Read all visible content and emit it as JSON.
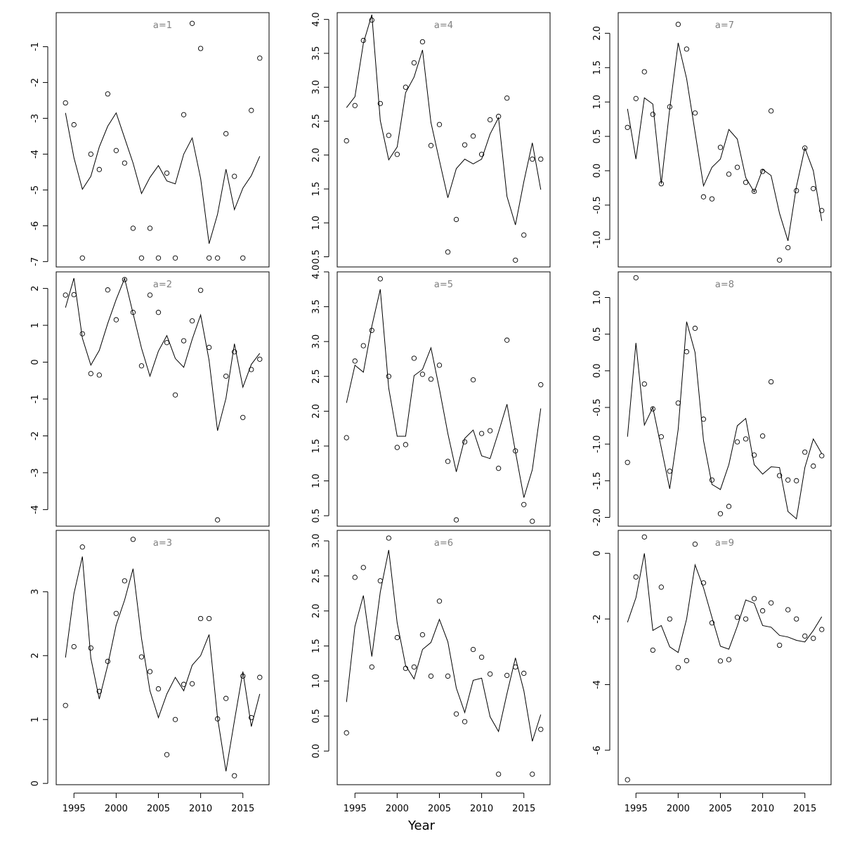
{
  "xlabel": "Year",
  "x_ticks": [
    1995,
    2000,
    2005,
    2010,
    2015
  ],
  "chart_data": [
    {
      "type": "scatter+line",
      "label": "a=1",
      "x": [
        1994,
        1995,
        1996,
        1997,
        1998,
        1999,
        2000,
        2001,
        2002,
        2003,
        2004,
        2005,
        2006,
        2007,
        2008,
        2009,
        2010,
        2011,
        2012,
        2013,
        2014,
        2015,
        2016,
        2017
      ],
      "points": [
        -2.57,
        -3.18,
        -6.9,
        -4.0,
        -4.43,
        -2.32,
        -3.9,
        -4.25,
        -6.07,
        -6.9,
        -6.07,
        -6.9,
        -4.53,
        -6.9,
        -2.9,
        -0.35,
        -1.05,
        -6.9,
        -6.9,
        -3.43,
        -4.62,
        -6.9,
        -2.78,
        -1.32
      ],
      "line": [
        -2.85,
        -4.1,
        -4.98,
        -4.62,
        -3.8,
        -3.22,
        -2.85,
        -3.55,
        -4.25,
        -5.1,
        -4.65,
        -4.32,
        -4.75,
        -4.83,
        -4.0,
        -3.55,
        -4.68,
        -6.5,
        -5.68,
        -4.42,
        -5.55,
        -4.95,
        -4.6,
        -4.06
      ],
      "ylim": [
        -7.15,
        -0.05
      ],
      "yticks": [
        -7,
        -6,
        -5,
        -4,
        -3,
        -2,
        -1
      ]
    },
    {
      "type": "scatter+line",
      "label": "a=2",
      "x": [
        1994,
        1995,
        1996,
        1997,
        1998,
        1999,
        2000,
        2001,
        2002,
        2003,
        2004,
        2005,
        2006,
        2007,
        2008,
        2009,
        2010,
        2011,
        2012,
        2013,
        2014,
        2015,
        2016,
        2017
      ],
      "points": [
        1.82,
        1.83,
        0.77,
        -0.31,
        -0.35,
        1.96,
        1.15,
        2.24,
        1.35,
        -0.1,
        1.82,
        1.35,
        0.53,
        -0.89,
        0.58,
        1.12,
        1.95,
        0.4,
        -4.28,
        -0.38,
        0.28,
        -1.5,
        -0.2,
        0.08
      ],
      "line": [
        1.48,
        2.28,
        0.65,
        -0.08,
        0.32,
        1.05,
        1.7,
        2.27,
        1.32,
        0.38,
        -0.38,
        0.3,
        0.72,
        0.1,
        -0.14,
        0.62,
        1.28,
        0.05,
        -1.86,
        -0.98,
        0.5,
        -0.68,
        -0.06,
        0.24
      ],
      "ylim": [
        -4.45,
        2.45
      ],
      "yticks": [
        -4,
        -3,
        -2,
        -1,
        0,
        1,
        2
      ]
    },
    {
      "type": "scatter+line",
      "label": "a=3",
      "x": [
        1994,
        1995,
        1996,
        1997,
        1998,
        1999,
        2000,
        2001,
        2002,
        2003,
        2004,
        2005,
        2006,
        2007,
        2008,
        2009,
        2010,
        2011,
        2012,
        2013,
        2014,
        2015,
        2016,
        2017
      ],
      "points": [
        1.22,
        2.14,
        3.7,
        2.12,
        1.44,
        1.91,
        2.66,
        3.17,
        3.82,
        1.98,
        1.75,
        1.48,
        0.45,
        1.0,
        1.55,
        1.56,
        2.58,
        2.58,
        1.01,
        1.33,
        0.12,
        1.68,
        1.03,
        1.66
      ],
      "line": [
        1.97,
        2.97,
        3.55,
        1.96,
        1.32,
        1.85,
        2.48,
        2.87,
        3.36,
        2.27,
        1.45,
        1.03,
        1.4,
        1.66,
        1.45,
        1.85,
        2.0,
        2.33,
        1.03,
        0.19,
        0.98,
        1.75,
        0.89,
        1.4
      ],
      "ylim": [
        -0.02,
        3.96
      ],
      "yticks": [
        0,
        1,
        2,
        3
      ]
    },
    {
      "type": "scatter+line",
      "label": "a=4",
      "x": [
        1994,
        1995,
        1996,
        1997,
        1998,
        1999,
        2000,
        2001,
        2002,
        2003,
        2004,
        2005,
        2006,
        2007,
        2008,
        2009,
        2010,
        2011,
        2012,
        2013,
        2014,
        2015,
        2016,
        2017
      ],
      "points": [
        2.21,
        2.73,
        3.69,
        3.99,
        2.76,
        2.29,
        2.01,
        3.0,
        3.36,
        3.67,
        2.14,
        2.45,
        0.57,
        1.05,
        2.15,
        2.28,
        2.01,
        2.52,
        2.57,
        2.84,
        0.45,
        0.82,
        1.94,
        1.94
      ],
      "line": [
        2.7,
        2.86,
        3.65,
        4.07,
        2.51,
        1.93,
        2.12,
        2.92,
        3.15,
        3.55,
        2.48,
        1.92,
        1.37,
        1.8,
        1.94,
        1.87,
        1.94,
        2.31,
        2.55,
        1.39,
        0.97,
        1.61,
        2.18,
        1.49
      ],
      "ylim": [
        0.35,
        4.1
      ],
      "yticks": [
        0.5,
        1.0,
        1.5,
        2.0,
        2.5,
        3.0,
        3.5,
        4.0
      ]
    },
    {
      "type": "scatter+line",
      "label": "a=5",
      "x": [
        1994,
        1995,
        1996,
        1997,
        1998,
        1999,
        2000,
        2001,
        2002,
        2003,
        2004,
        2005,
        2006,
        2007,
        2008,
        2009,
        2010,
        2011,
        2012,
        2013,
        2014,
        2015,
        2016,
        2017
      ],
      "points": [
        1.62,
        2.72,
        2.94,
        3.16,
        3.9,
        2.5,
        1.48,
        1.52,
        2.76,
        2.53,
        2.46,
        2.66,
        1.28,
        0.44,
        1.56,
        2.45,
        1.68,
        1.72,
        1.18,
        3.02,
        1.43,
        0.66,
        0.42,
        2.38
      ],
      "line": [
        2.12,
        2.66,
        2.56,
        3.22,
        3.75,
        2.33,
        1.64,
        1.64,
        2.51,
        2.6,
        2.91,
        2.32,
        1.68,
        1.13,
        1.61,
        1.73,
        1.36,
        1.32,
        1.7,
        2.1,
        1.42,
        0.76,
        1.16,
        2.04
      ],
      "ylim": [
        0.35,
        4.0
      ],
      "yticks": [
        0.5,
        1.0,
        1.5,
        2.0,
        2.5,
        3.0,
        3.5,
        4.0
      ]
    },
    {
      "type": "scatter+line",
      "label": "a=6",
      "x": [
        1994,
        1995,
        1996,
        1997,
        1998,
        1999,
        2000,
        2001,
        2002,
        2003,
        2004,
        2005,
        2006,
        2007,
        2008,
        2009,
        2010,
        2011,
        2012,
        2013,
        2014,
        2015,
        2016,
        2017
      ],
      "points": [
        0.26,
        2.48,
        2.62,
        1.2,
        2.43,
        3.04,
        1.62,
        1.18,
        1.2,
        1.66,
        1.07,
        2.14,
        1.07,
        0.53,
        0.42,
        1.45,
        1.34,
        1.1,
        -0.33,
        1.08,
        1.2,
        1.11,
        -0.33,
        0.31
      ],
      "line": [
        0.7,
        1.78,
        2.22,
        1.35,
        2.27,
        2.87,
        1.83,
        1.22,
        1.03,
        1.45,
        1.55,
        1.88,
        1.56,
        0.9,
        0.55,
        1.01,
        1.04,
        0.49,
        0.28,
        0.82,
        1.33,
        0.86,
        0.14,
        0.52
      ],
      "ylim": [
        -0.48,
        3.15
      ],
      "yticks": [
        0.0,
        0.5,
        1.0,
        1.5,
        2.0,
        2.5,
        3.0
      ]
    },
    {
      "type": "scatter+line",
      "label": "a=7",
      "x": [
        1994,
        1995,
        1996,
        1997,
        1998,
        1999,
        2000,
        2001,
        2002,
        2003,
        2004,
        2005,
        2006,
        2007,
        2008,
        2009,
        2010,
        2011,
        2012,
        2013,
        2014,
        2015,
        2016,
        2017
      ],
      "points": [
        0.63,
        1.05,
        1.44,
        0.82,
        -0.19,
        0.93,
        2.13,
        1.77,
        0.84,
        -0.38,
        -0.41,
        0.34,
        -0.05,
        0.05,
        -0.17,
        -0.3,
        -0.01,
        0.87,
        -1.3,
        -1.12,
        -0.29,
        0.33,
        -0.26,
        -0.58
      ],
      "line": [
        0.9,
        0.17,
        1.06,
        0.97,
        -0.19,
        0.9,
        1.86,
        1.34,
        0.56,
        -0.22,
        0.05,
        0.17,
        0.6,
        0.46,
        -0.1,
        -0.31,
        0.02,
        -0.07,
        -0.62,
        -1.02,
        -0.23,
        0.33,
        0.0,
        -0.73
      ],
      "ylim": [
        -1.4,
        2.3
      ],
      "yticks": [
        -1.0,
        -0.5,
        0.0,
        0.5,
        1.0,
        1.5,
        2.0
      ]
    },
    {
      "type": "scatter+line",
      "label": "a=8",
      "x": [
        1994,
        1995,
        1996,
        1997,
        1998,
        1999,
        2000,
        2001,
        2002,
        2003,
        2004,
        2005,
        2006,
        2007,
        2008,
        2009,
        2010,
        2011,
        2012,
        2013,
        2014,
        2015,
        2016,
        2017
      ],
      "points": [
        -1.25,
        1.27,
        -0.18,
        -0.52,
        -0.9,
        -1.37,
        -0.44,
        0.26,
        0.58,
        -0.66,
        -1.49,
        -1.95,
        -1.85,
        -0.97,
        -0.93,
        -1.15,
        -0.89,
        -0.15,
        -1.43,
        -1.49,
        -1.5,
        -1.11,
        -1.3,
        -1.16
      ],
      "line": [
        -0.9,
        0.38,
        -0.74,
        -0.5,
        -1.05,
        -1.61,
        -0.8,
        0.67,
        0.25,
        -0.95,
        -1.55,
        -1.62,
        -1.28,
        -0.75,
        -0.65,
        -1.28,
        -1.41,
        -1.31,
        -1.32,
        -1.92,
        -2.02,
        -1.32,
        -0.93,
        -1.13
      ],
      "ylim": [
        -2.12,
        1.35
      ],
      "yticks": [
        -2.0,
        -1.5,
        -1.0,
        -0.5,
        0.0,
        0.5,
        1.0
      ]
    },
    {
      "type": "scatter+line",
      "label": "a=9",
      "x": [
        1994,
        1995,
        1996,
        1997,
        1998,
        1999,
        2000,
        2001,
        2002,
        2003,
        2004,
        2005,
        2006,
        2007,
        2008,
        2009,
        2010,
        2011,
        2012,
        2013,
        2014,
        2015,
        2016,
        2017
      ],
      "points": [
        -6.9,
        -0.72,
        0.5,
        -2.95,
        -1.03,
        -2.0,
        -3.48,
        -3.27,
        0.28,
        -0.9,
        -2.12,
        -3.28,
        -3.24,
        -1.95,
        -2.0,
        -1.38,
        -1.75,
        -1.51,
        -2.8,
        -1.72,
        -2.0,
        -2.52,
        -2.59,
        -2.32
      ],
      "line": [
        -2.1,
        -1.35,
        0.0,
        -2.35,
        -2.2,
        -2.85,
        -3.02,
        -2.0,
        -0.35,
        -1.05,
        -1.95,
        -2.83,
        -2.92,
        -2.22,
        -1.42,
        -1.52,
        -2.2,
        -2.25,
        -2.5,
        -2.55,
        -2.65,
        -2.7,
        -2.35,
        -1.93
      ],
      "ylim": [
        -7.05,
        0.7
      ],
      "yticks": [
        -6,
        -4,
        -2,
        0
      ]
    }
  ]
}
